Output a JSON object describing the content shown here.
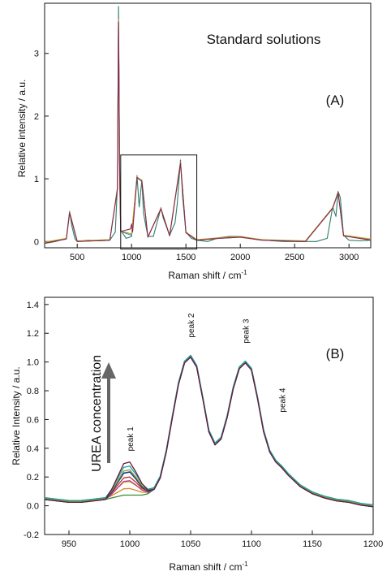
{
  "figure": {
    "chart_data": [
      {
        "type": "line",
        "title": "Standard solutions",
        "panel_label": "(A)",
        "xlabel": "Raman shift / cm",
        "xlabel_sup": "-1",
        "ylabel": "Relative intensity / a.u.",
        "xlim": [
          200,
          3200
        ],
        "ylim": [
          -0.1,
          3.8
        ],
        "xticks": [
          500,
          1000,
          1500,
          2000,
          2500,
          3000
        ],
        "yticks": [
          0,
          1,
          2,
          3
        ],
        "grid": false,
        "inset_box_x": [
          900,
          1600
        ],
        "inset_box_y": [
          -0.12,
          1.38
        ],
        "series": [
          {
            "color": "#2e7d6b",
            "x": [
              200,
              300,
              400,
              430,
              450,
              480,
              500,
              600,
              700,
              800,
              850,
              870,
              880,
              890,
              900,
              950,
              1000,
              1030,
              1050,
              1070,
              1095,
              1110,
              1150,
              1200,
              1250,
              1270,
              1290,
              1350,
              1400,
              1420,
              1450,
              1470,
              1500,
              1550,
              1600,
              1700,
              1800,
              1900,
              2000,
              2100,
              2200,
              2300,
              2400,
              2500,
              2600,
              2700,
              2800,
              2850,
              2880,
              2900,
              2920,
              2950,
              3000,
              3100,
              3200
            ],
            "y": [
              -0.03,
              0.0,
              0.05,
              0.48,
              0.25,
              0.04,
              0.0,
              0.02,
              0.01,
              0.02,
              0.15,
              0.9,
              3.75,
              1.2,
              0.18,
              0.05,
              0.08,
              0.6,
              1.05,
              0.55,
              0.98,
              0.45,
              0.08,
              0.08,
              0.4,
              0.54,
              0.38,
              0.1,
              0.3,
              0.6,
              1.3,
              0.7,
              0.15,
              0.05,
              0.02,
              0.0,
              0.06,
              0.08,
              0.08,
              0.05,
              0.03,
              0.01,
              0.0,
              0.0,
              0.0,
              0.0,
              0.05,
              0.55,
              0.4,
              0.8,
              0.7,
              0.1,
              0.02,
              0.01,
              0.02
            ]
          },
          {
            "color": "#3a7fb0",
            "x": [
              200,
              400,
              430,
              500,
              800,
              870,
              880,
              890,
              900,
              1000,
              1050,
              1095,
              1150,
              1270,
              1350,
              1450,
              1500,
              1600,
              1800,
              2000,
              2200,
              2600,
              2850,
              2900,
              2950,
              3200
            ],
            "y": [
              -0.02,
              0.04,
              0.46,
              0.0,
              0.02,
              0.85,
              3.6,
              1.1,
              0.16,
              0.1,
              1.02,
              0.96,
              0.07,
              0.52,
              0.09,
              1.26,
              0.14,
              0.02,
              0.05,
              0.07,
              0.02,
              0.0,
              0.53,
              0.78,
              0.09,
              0.03
            ]
          },
          {
            "color": "#c0a020",
            "x": [
              200,
              400,
              430,
              500,
              800,
              870,
              880,
              890,
              900,
              1000,
              1050,
              1095,
              1150,
              1270,
              1350,
              1450,
              1500,
              1600,
              1800,
              2000,
              2200,
              2600,
              2850,
              2900,
              2950,
              3200
            ],
            "y": [
              -0.01,
              0.05,
              0.47,
              0.01,
              0.03,
              0.86,
              3.55,
              1.1,
              0.17,
              0.12,
              1.03,
              0.97,
              0.07,
              0.53,
              0.1,
              1.27,
              0.15,
              0.03,
              0.06,
              0.08,
              0.03,
              0.01,
              0.54,
              0.79,
              0.1,
              0.04
            ]
          },
          {
            "color": "#8a2a50",
            "x": [
              200,
              400,
              430,
              500,
              800,
              870,
              880,
              890,
              900,
              990,
              1000,
              1010,
              1050,
              1095,
              1150,
              1270,
              1350,
              1450,
              1500,
              1600,
              1800,
              2000,
              2200,
              2600,
              2850,
              2900,
              2950,
              3200
            ],
            "y": [
              -0.03,
              0.04,
              0.46,
              0.0,
              0.02,
              0.84,
              3.5,
              1.05,
              0.16,
              0.2,
              0.28,
              0.15,
              1.02,
              0.96,
              0.07,
              0.52,
              0.09,
              1.25,
              0.14,
              0.02,
              0.05,
              0.07,
              0.02,
              0.0,
              0.53,
              0.78,
              0.09,
              0.02
            ]
          }
        ]
      },
      {
        "type": "line",
        "panel_label": "(B)",
        "xlabel": "Raman shift / cm",
        "xlabel_sup": "-1",
        "ylabel": "Relative Intensity / a.u.",
        "xlim": [
          930,
          1200
        ],
        "ylim": [
          -0.2,
          1.45
        ],
        "xticks": [
          950,
          1000,
          1050,
          1100,
          1150,
          1200
        ],
        "yticks": [
          -0.2,
          0.0,
          0.2,
          0.4,
          0.6,
          0.8,
          1.0,
          1.2,
          1.4
        ],
        "ytick_labels": [
          "-0.2",
          "0.0",
          "0.2",
          "0.4",
          "0.6",
          "0.8",
          "1.0",
          "1.2",
          "1.4"
        ],
        "grid": false,
        "arrow_label": "UREA concentration",
        "peak_labels": [
          {
            "text": "peak 1",
            "x": 1000,
            "y": 0.38
          },
          {
            "text": "peak 2",
            "x": 1050,
            "y": 1.17
          },
          {
            "text": "peak 3",
            "x": 1095,
            "y": 1.13
          },
          {
            "text": "peak 4",
            "x": 1125,
            "y": 0.65
          }
        ],
        "base": {
          "x": [
            930,
            940,
            950,
            960,
            970,
            980,
            985,
            990,
            995,
            1000,
            1005,
            1010,
            1015,
            1020,
            1025,
            1030,
            1035,
            1040,
            1045,
            1050,
            1055,
            1060,
            1065,
            1070,
            1075,
            1080,
            1085,
            1090,
            1095,
            1100,
            1105,
            1110,
            1115,
            1120,
            1125,
            1130,
            1140,
            1150,
            1160,
            1170,
            1180,
            1190,
            1200
          ],
          "y": [
            0.05,
            0.04,
            0.03,
            0.03,
            0.04,
            0.05,
            0.06,
            0.07,
            0.08,
            0.08,
            0.08,
            0.08,
            0.09,
            0.12,
            0.2,
            0.38,
            0.62,
            0.85,
            1.0,
            1.04,
            0.97,
            0.75,
            0.52,
            0.43,
            0.47,
            0.62,
            0.82,
            0.96,
            1.0,
            0.95,
            0.75,
            0.52,
            0.38,
            0.31,
            0.27,
            0.22,
            0.14,
            0.09,
            0.06,
            0.04,
            0.03,
            0.01,
            0.0
          ]
        },
        "peak1_shape": {
          "x": [
            985,
            990,
            995,
            1000,
            1005,
            1010,
            1015
          ],
          "w": [
            0.25,
            0.6,
            0.95,
            1.0,
            0.7,
            0.35,
            0.1
          ]
        },
        "series": [
          {
            "color": "#3a8a30",
            "peak1_height": 0.0
          },
          {
            "color": "#d98a2a",
            "peak1_height": 0.04
          },
          {
            "color": "#e0c040",
            "peak1_height": 0.08
          },
          {
            "color": "#b03a8a",
            "peak1_height": 0.1
          },
          {
            "color": "#c03030",
            "peak1_height": 0.12
          },
          {
            "color": "#2a8ac0",
            "peak1_height": 0.15
          },
          {
            "color": "#1a3a8a",
            "peak1_height": 0.16
          },
          {
            "color": "#8aa030",
            "peak1_height": 0.17
          },
          {
            "color": "#20a0a0",
            "peak1_height": 0.19
          },
          {
            "color": "#6a1a3a",
            "peak1_height": 0.23
          }
        ]
      }
    ]
  }
}
